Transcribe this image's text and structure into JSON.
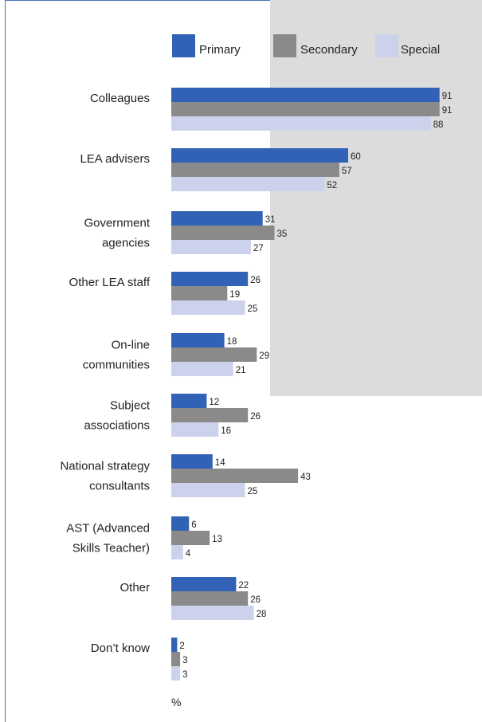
{
  "colors": {
    "primary": "#3262b5",
    "secondary": "#8a8a8a",
    "special": "#cdd2ec",
    "frame": "#4a73b3",
    "shade": "#dcdcdc"
  },
  "chart_data": {
    "type": "bar",
    "orientation": "horizontal",
    "categories": [
      [
        "Colleagues"
      ],
      [
        "LEA advisers"
      ],
      [
        "Government",
        "agencies"
      ],
      [
        "Other LEA staff"
      ],
      [
        "On-line",
        "communities"
      ],
      [
        "Subject",
        "associations"
      ],
      [
        "National strategy",
        "consultants"
      ],
      [
        "AST (Advanced",
        "Skills Teacher)"
      ],
      [
        "Other"
      ],
      [
        "Don’t know"
      ]
    ],
    "series": [
      {
        "name": "Primary",
        "values": [
          91,
          60,
          31,
          26,
          18,
          12,
          14,
          6,
          22,
          2
        ]
      },
      {
        "name": "Secondary",
        "values": [
          91,
          57,
          35,
          19,
          29,
          26,
          43,
          13,
          26,
          3
        ]
      },
      {
        "name": "Special",
        "values": [
          88,
          52,
          27,
          25,
          21,
          16,
          25,
          4,
          28,
          3
        ]
      }
    ],
    "xlabel": "%",
    "xlim": [
      0,
      100
    ],
    "legend": "top",
    "grid": false,
    "data_labels": true
  }
}
